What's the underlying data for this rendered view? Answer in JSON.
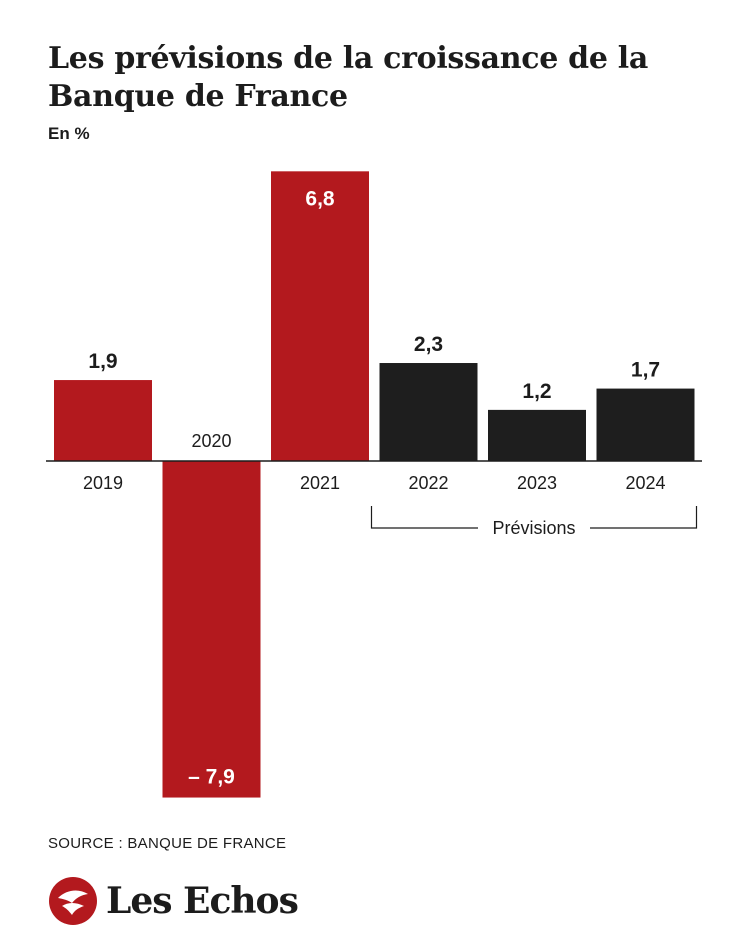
{
  "header": {
    "title": "Les prévisions de la croissance de la Banque de France",
    "subtitle": "En %"
  },
  "chart_data": {
    "type": "bar",
    "title": "Les prévisions de la croissance de la Banque de France",
    "subtitle": "En %",
    "ylabel": "",
    "xlabel": "",
    "categories": [
      "2019",
      "2020",
      "2021",
      "2022",
      "2023",
      "2024"
    ],
    "values": [
      1.9,
      -7.9,
      6.8,
      2.3,
      1.2,
      1.7
    ],
    "value_labels": [
      "1,9",
      "– 7,9",
      "6,8",
      "2,3",
      "1,2",
      "1,7"
    ],
    "forecast_from_index": 3,
    "forecast_label": "Prévisions",
    "colors": {
      "actual": "#b3191e",
      "forecast": "#1e1e1e",
      "value_on_bar": "#ffffff"
    },
    "ylim": [
      -7.9,
      6.8
    ],
    "grid": false,
    "legend": "none"
  },
  "footer": {
    "source": "SOURCE : BANQUE DE FRANCE",
    "brand": "Les Echos",
    "brand_color": "#b3191e"
  }
}
